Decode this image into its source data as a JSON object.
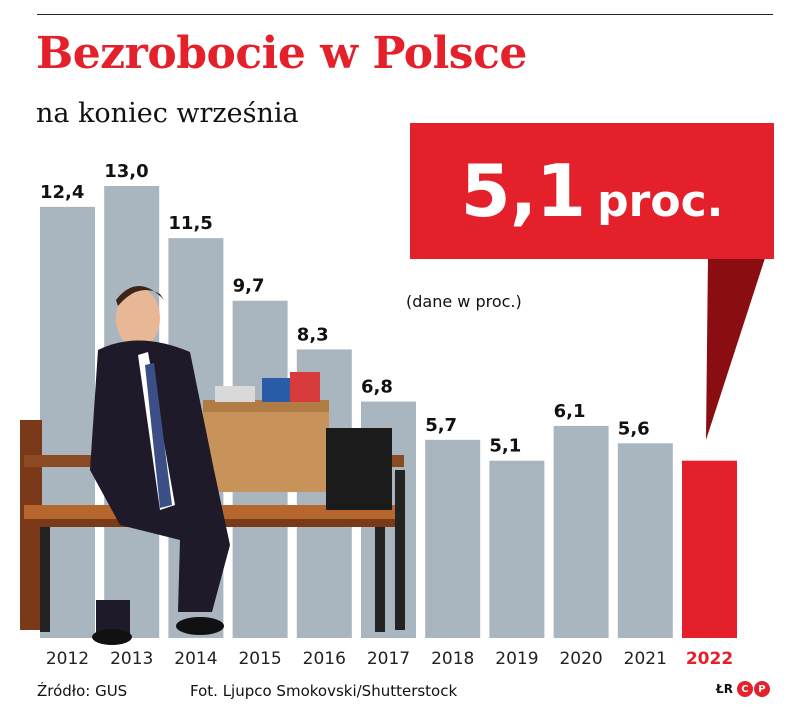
{
  "header": {
    "title": "Bezrobocie w Polsce",
    "subtitle": "na koniec września"
  },
  "callout": {
    "value": "5,1",
    "unit": "proc."
  },
  "units_note": "(dane w proc.)",
  "footer": {
    "source": "Źródło: GUS",
    "photo_credit": "Fot. Ljupco Smokovski/Shutterstock",
    "logo_text": "ŁR",
    "logo_badge": [
      "C",
      "P"
    ]
  },
  "colors": {
    "accent": "#e4202a",
    "bar": "#a9b6c0",
    "highlight_dark": "#8a0d12"
  },
  "chart_data": {
    "type": "bar",
    "title": "Bezrobocie w Polsce",
    "subtitle": "na koniec września",
    "categories": [
      "2012",
      "2013",
      "2014",
      "2015",
      "2016",
      "2017",
      "2018",
      "2019",
      "2020",
      "2021",
      "2022"
    ],
    "values": [
      12.4,
      13.0,
      11.5,
      9.7,
      8.3,
      6.8,
      5.7,
      5.1,
      6.1,
      5.6,
      5.1
    ],
    "data_labels": [
      "12,4",
      "13,0",
      "11,5",
      "9,7",
      "8,3",
      "6,8",
      "5,7",
      "5,1",
      "6,1",
      "5,6",
      ""
    ],
    "highlight_index": 10,
    "ylim": [
      0,
      13.0
    ],
    "grid": false,
    "legend": "none"
  }
}
